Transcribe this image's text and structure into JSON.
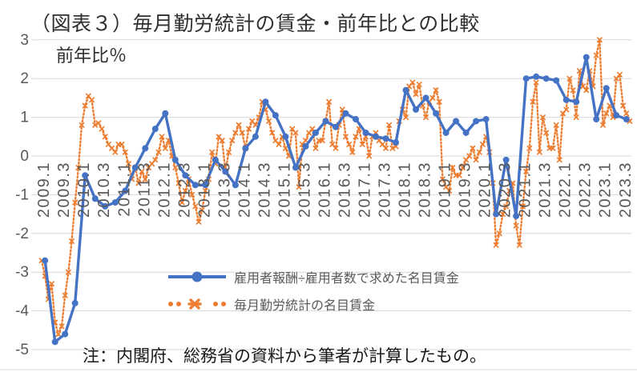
{
  "chart_data": {
    "type": "line",
    "title": "（図表３）毎月勤労統計の賃金・前年比との比較",
    "ylabel": "前年比％",
    "note": "注：内閣府、総務省の資料から筆者が計算したもの。",
    "ylim": [
      -5,
      3
    ],
    "y_ticks": [
      "3",
      "2",
      "1",
      "0",
      "-1",
      "-2",
      "-3",
      "-4",
      "-5"
    ],
    "x_ticks": [
      "2009.1",
      "2009.3",
      "2010.1",
      "2010.3",
      "2011.1",
      "2011.3",
      "2012.1",
      "2012.3",
      "2013.1",
      "2013.3",
      "2014.1",
      "2014.3",
      "2015.1",
      "2015.3",
      "2016.1",
      "2016.3",
      "2017.1",
      "2017.3",
      "2018.1",
      "2018.3",
      "2019.1",
      "2019.3",
      "2020.1",
      "2020.3",
      "2021.1",
      "2021.3",
      "2022.1",
      "2022.3",
      "2023.1",
      "2023.3"
    ],
    "grid": true,
    "legend_position": "inside-bottom-center",
    "colors": {
      "blue_series": "#4472C4",
      "orange_series": "#ED7D31",
      "gridline": "#D9D9D9",
      "axis_text": "#595959"
    },
    "series": [
      {
        "name": "雇用者報酬÷雇用者数で求めた名目賃金",
        "color": "#4472C4",
        "style": "solid-line-circle-markers",
        "frequency": "quarterly",
        "start": "2009Q1",
        "end": "2023Q3",
        "values": [
          -2.7,
          -4.8,
          -4.6,
          -3.8,
          -0.5,
          -1.1,
          -1.3,
          -1.2,
          -0.9,
          -0.3,
          0.2,
          0.7,
          1.1,
          -0.1,
          -0.5,
          -0.75,
          -0.75,
          -0.1,
          -0.4,
          -0.75,
          0.2,
          0.5,
          1.4,
          1.05,
          0.5,
          -0.3,
          0.25,
          0.6,
          0.9,
          0.75,
          1.1,
          0.95,
          0.6,
          0.5,
          0.45,
          0.35,
          1.7,
          1.2,
          1.5,
          1.1,
          0.6,
          0.9,
          0.6,
          0.9,
          0.95,
          -1.5,
          -0.1,
          -1.55,
          2.0,
          2.05,
          2.0,
          1.95,
          1.45,
          1.4,
          2.55,
          0.95,
          1.75,
          1.05,
          0.95
        ]
      },
      {
        "name": "毎月勤労統計の名目賃金",
        "color": "#ED7D31",
        "style": "dotted-line-star-markers",
        "frequency": "monthly",
        "start": "2009.01",
        "end": "2023.09",
        "values": [
          -2.7,
          -3.1,
          -3.7,
          -3.3,
          -4.3,
          -4.6,
          -4.4,
          -3.6,
          -3.0,
          -2.2,
          -1.2,
          -0.3,
          0.8,
          1.3,
          1.55,
          1.45,
          0.8,
          0.85,
          0.7,
          0.5,
          0.3,
          0.2,
          0.1,
          0.3,
          0.3,
          0.1,
          -0.2,
          -0.6,
          -0.3,
          -0.7,
          -0.4,
          -0.6,
          -0.3,
          -0.2,
          -0.1,
          0.1,
          0.5,
          0.2,
          0.4,
          0.0,
          -0.3,
          -0.7,
          -1.2,
          -0.9,
          -0.6,
          -1.0,
          -1.3,
          -1.7,
          -1.4,
          -0.9,
          -0.6,
          0.1,
          -0.2,
          0.5,
          0.4,
          -0.4,
          0.1,
          0.4,
          0.6,
          0.8,
          0.6,
          0.2,
          0.7,
          0.9,
          0.8,
          1.0,
          1.4,
          1.2,
          0.9,
          0.6,
          0.4,
          0.3,
          0.5,
          0.2,
          0.0,
          0.7,
          0.6,
          -0.8,
          0.3,
          0.4,
          0.6,
          0.7,
          0.2,
          0.4,
          0.4,
          0.9,
          1.4,
          0.3,
          0.2,
          0.8,
          1.2,
          0.5,
          0.3,
          0.1,
          0.5,
          0.7,
          0.3,
          0.5,
          0.0,
          0.5,
          0.6,
          0.4,
          0.3,
          0.2,
          0.8,
          0.2,
          0.25,
          0.9,
          1.2,
          1.0,
          1.8,
          1.9,
          1.6,
          1.85,
          1.3,
          1.0,
          1.4,
          1.5,
          1.7,
          1.4,
          -0.6,
          -0.8,
          -0.9,
          -0.3,
          -0.5,
          -0.5,
          -0.3,
          -0.1,
          0.0,
          0.2,
          -0.1,
          0.1,
          0.3,
          0.5,
          0.1,
          -0.7,
          -2.3,
          -2.0,
          -1.5,
          -1.3,
          -0.9,
          -0.7,
          -1.8,
          -2.3,
          -1.3,
          -0.4,
          0.2,
          1.4,
          1.9,
          0.1,
          1.0,
          0.6,
          0.2,
          0.2,
          0.8,
          -0.1,
          1.1,
          1.2,
          2.0,
          1.7,
          1.0,
          2.2,
          1.8,
          1.7,
          2.2,
          1.8,
          2.6,
          3.0,
          0.8,
          1.1,
          1.3,
          1.0,
          2.0,
          2.1,
          1.3,
          1.1,
          0.9
        ]
      }
    ]
  }
}
